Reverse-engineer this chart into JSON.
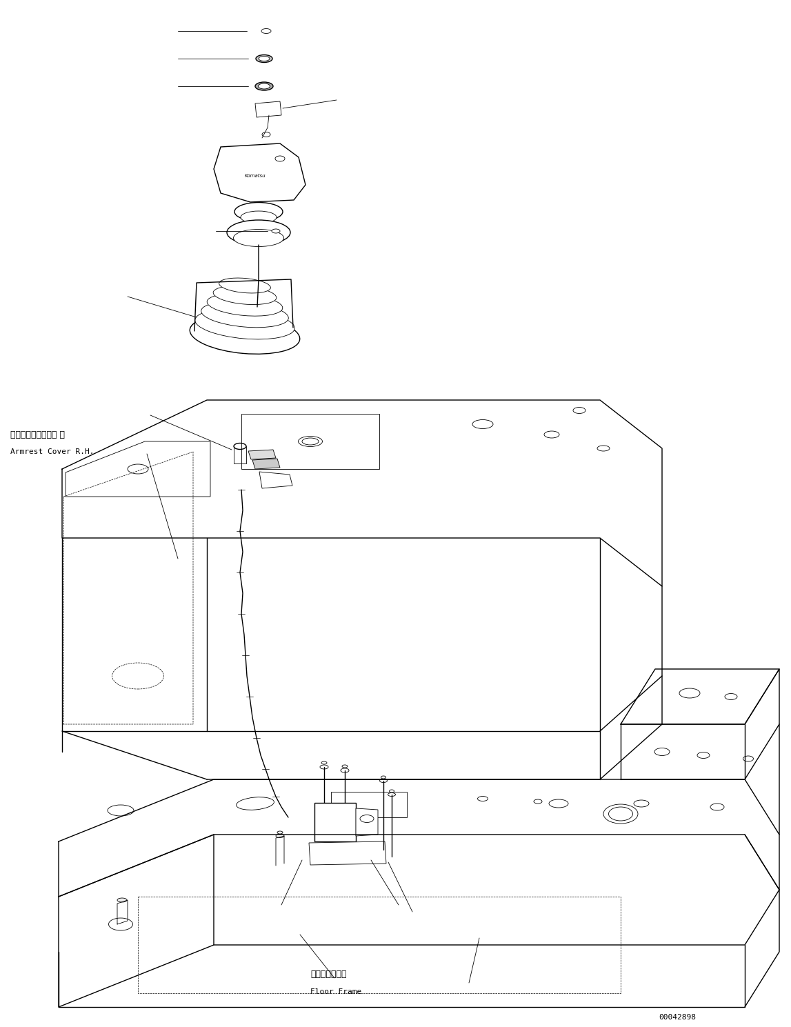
{
  "bg_color": "#ffffff",
  "line_color": "#000000",
  "fig_width": 11.47,
  "fig_height": 14.89,
  "dpi": 100,
  "label_armrest_jp": "アームレストカバー 右",
  "label_armrest_en": "Armrest Cover R.H.",
  "label_floor_jp": "フロアフレーム",
  "label_floor_en": "Floor Frame",
  "doc_number": "00042898",
  "font_size_label": 9,
  "font_size_doc": 8
}
